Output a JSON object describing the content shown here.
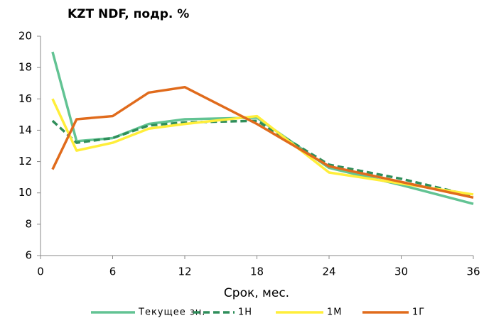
{
  "chart_data": {
    "type": "line",
    "title": "KZT NDF, подр. %",
    "x_label": "Срок, мес.",
    "x": [
      1,
      3,
      6,
      9,
      12,
      18,
      24,
      30,
      36
    ],
    "series": [
      {
        "name": "Текущее зн.",
        "color": "#62c393",
        "dash": false,
        "values": [
          19.0,
          13.3,
          13.5,
          14.4,
          14.7,
          14.8,
          11.6,
          10.5,
          9.3
        ]
      },
      {
        "name": "1Н",
        "color": "#2f8e5a",
        "dash": true,
        "values": [
          14.6,
          13.2,
          13.5,
          14.3,
          14.5,
          14.6,
          11.8,
          10.9,
          9.8
        ]
      },
      {
        "name": "1М",
        "color": "#ffee3a",
        "dash": false,
        "values": [
          16.0,
          12.7,
          13.2,
          14.1,
          14.4,
          14.9,
          11.3,
          10.6,
          9.9
        ]
      },
      {
        "name": "1Г",
        "color": "#e06b1c",
        "dash": false,
        "values": [
          11.5,
          14.7,
          14.9,
          16.4,
          16.75,
          14.4,
          11.7,
          10.7,
          9.7
        ]
      }
    ],
    "xlim": [
      0,
      36
    ],
    "xticks": [
      0,
      6,
      12,
      18,
      24,
      30,
      36
    ],
    "ylim": [
      6,
      20
    ],
    "yticks": [
      6,
      8,
      10,
      12,
      14,
      16,
      18,
      20
    ],
    "grid": false,
    "legend": "bottom"
  }
}
